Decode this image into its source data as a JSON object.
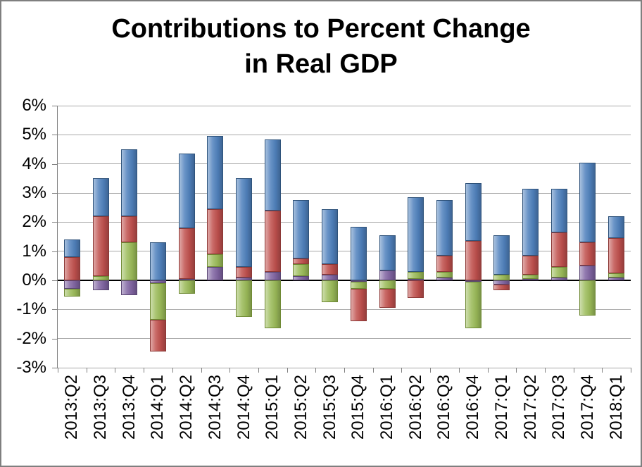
{
  "title": {
    "line1": "Contributions to Percent Change",
    "line2": "in Real GDP"
  },
  "chart_data": {
    "type": "bar",
    "subtype": "stacked",
    "title": "Contributions to Percent Change in Real GDP",
    "xlabel": "",
    "ylabel": "",
    "ylim": [
      -3,
      6
    ],
    "ytick_step": 1,
    "ytick_labels": [
      "6%",
      "5%",
      "4%",
      "3%",
      "2%",
      "1%",
      "0%",
      "-1%",
      "-2%",
      "-3%"
    ],
    "grid": true,
    "legend": "none",
    "gridline_color": "#a8a8a8",
    "zero_line_color": "#000000",
    "categories": [
      "2013:Q2",
      "2013:Q3",
      "2013:Q4",
      "2014:Q1",
      "2014:Q2",
      "2014:Q3",
      "2014:Q4",
      "2015:Q1",
      "2015:Q2",
      "2015:Q3",
      "2015:Q4",
      "2016:Q1",
      "2016:Q2",
      "2016:Q3",
      "2016:Q4",
      "2017:Q1",
      "2017:Q2",
      "2017:Q3",
      "2017:Q4",
      "2018:Q1"
    ],
    "series": [
      {
        "name": "purple-series",
        "color": "#8064a2",
        "border": "#5a4673",
        "values": [
          -0.3,
          -0.35,
          -0.5,
          -0.1,
          0.05,
          0.45,
          0.1,
          0.3,
          0.15,
          0.2,
          -0.05,
          0.35,
          0.05,
          0.1,
          -0.05,
          -0.15,
          0.05,
          0.1,
          0.5,
          0.1
        ]
      },
      {
        "name": "green-series",
        "color": "#9bbb59",
        "border": "#6f8a34",
        "values": [
          -0.25,
          0.15,
          1.3,
          -1.25,
          -0.45,
          0.45,
          -1.25,
          -1.65,
          0.4,
          -0.75,
          -0.25,
          -0.3,
          0.25,
          0.2,
          -1.6,
          0.2,
          0.15,
          0.35,
          -1.2,
          0.15
        ]
      },
      {
        "name": "red-series",
        "color": "#c0504d",
        "border": "#8c3836",
        "values": [
          0.8,
          2.05,
          0.9,
          -1.1,
          1.75,
          1.55,
          0.35,
          2.1,
          0.2,
          0.35,
          -1.1,
          -0.65,
          -0.6,
          0.55,
          1.35,
          -0.2,
          0.65,
          1.2,
          0.8,
          1.2
        ]
      },
      {
        "name": "blue-series",
        "color": "#4f81bd",
        "border": "#2e527a",
        "values": [
          0.6,
          1.3,
          2.3,
          1.3,
          2.55,
          2.5,
          3.05,
          2.45,
          2.0,
          1.9,
          1.85,
          1.2,
          2.55,
          1.9,
          2.0,
          1.35,
          2.3,
          1.5,
          2.75,
          0.75
        ]
      }
    ]
  }
}
